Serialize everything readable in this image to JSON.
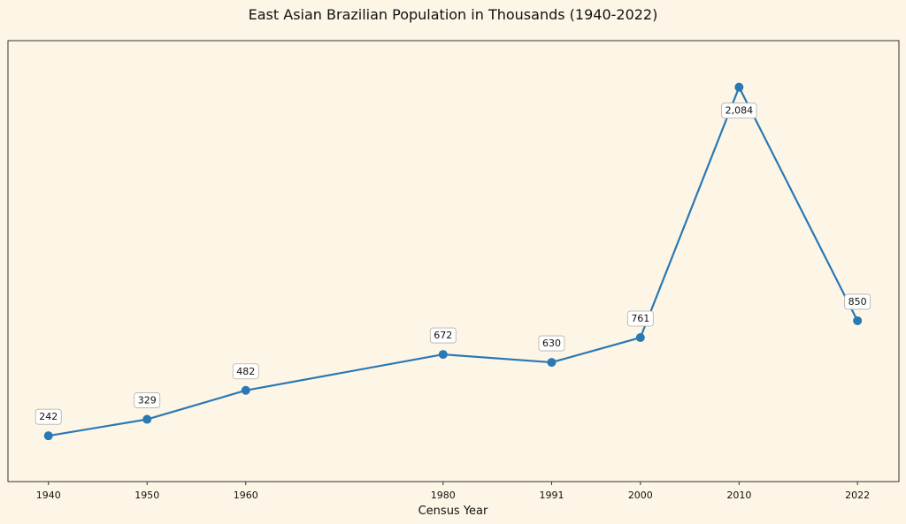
{
  "chart_data": {
    "type": "line",
    "title": "East Asian Brazilian Population in Thousands (1940-2022)",
    "xlabel": "Census Year",
    "ylabel": "",
    "x": [
      1940,
      1950,
      1960,
      1980,
      1991,
      2000,
      2010,
      2022
    ],
    "xtick_labels": [
      "1940",
      "1950",
      "1960",
      "1980",
      "1991",
      "2000",
      "2010",
      "2022"
    ],
    "series": [
      {
        "name": "",
        "values": [
          242,
          329,
          482,
          672,
          630,
          761,
          2084,
          850
        ],
        "labels": [
          "242",
          "329",
          "482",
          "672",
          "630",
          "761",
          "2,084",
          "850"
        ],
        "color": "#2a78b4"
      }
    ],
    "xlim": [
      1935.9,
      2026.2
    ],
    "ylim": [
      0,
      2330
    ],
    "yticks_visible": false,
    "grid": false,
    "legend": "none",
    "background": "#fdf6e6"
  }
}
